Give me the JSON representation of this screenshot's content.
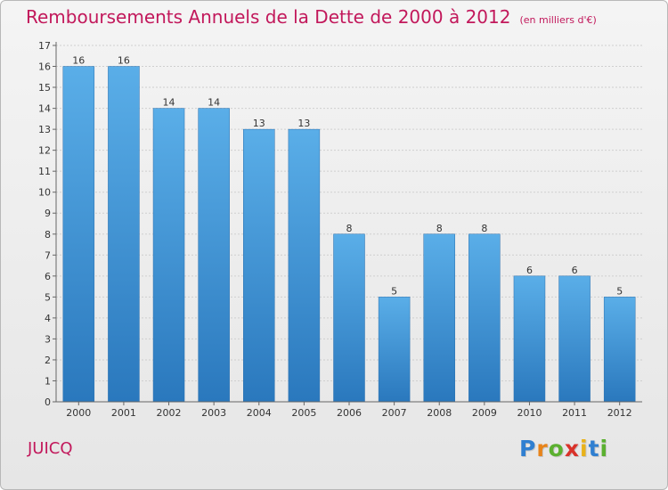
{
  "header": {
    "title": "Remboursements Annuels de la Dette de 2000 à 2012",
    "unit": "(en milliers d'€)"
  },
  "footer": {
    "commune": "JUICQ",
    "brand": [
      "P",
      "r",
      "o",
      "x",
      "i",
      "t",
      "i"
    ],
    "brand_colors": [
      "#2f7fd1",
      "#e8841a",
      "#5bb030",
      "#d9322a",
      "#e8b21a",
      "#2f7fd1",
      "#5bb030"
    ]
  },
  "colors": {
    "bar_top": "#5aaee8",
    "bar_bottom": "#2a78bd",
    "title": "#c2185b",
    "grid": "#cfcfcf"
  },
  "chart_data": {
    "type": "bar",
    "title": "Remboursements Annuels de la Dette de 2000 à 2012",
    "subtitle": "(en milliers d'€)",
    "xlabel": "",
    "ylabel": "",
    "categories": [
      "2000",
      "2001",
      "2002",
      "2003",
      "2004",
      "2005",
      "2006",
      "2007",
      "2008",
      "2009",
      "2010",
      "2011",
      "2012"
    ],
    "values": [
      16,
      16,
      14,
      14,
      13,
      13,
      8,
      5,
      8,
      8,
      6,
      6,
      5
    ],
    "ylim": [
      0,
      17
    ],
    "yticks": [
      0,
      1,
      2,
      3,
      4,
      5,
      6,
      7,
      8,
      9,
      10,
      11,
      12,
      13,
      14,
      15,
      16,
      17
    ],
    "grid": true,
    "data_labels": true
  }
}
